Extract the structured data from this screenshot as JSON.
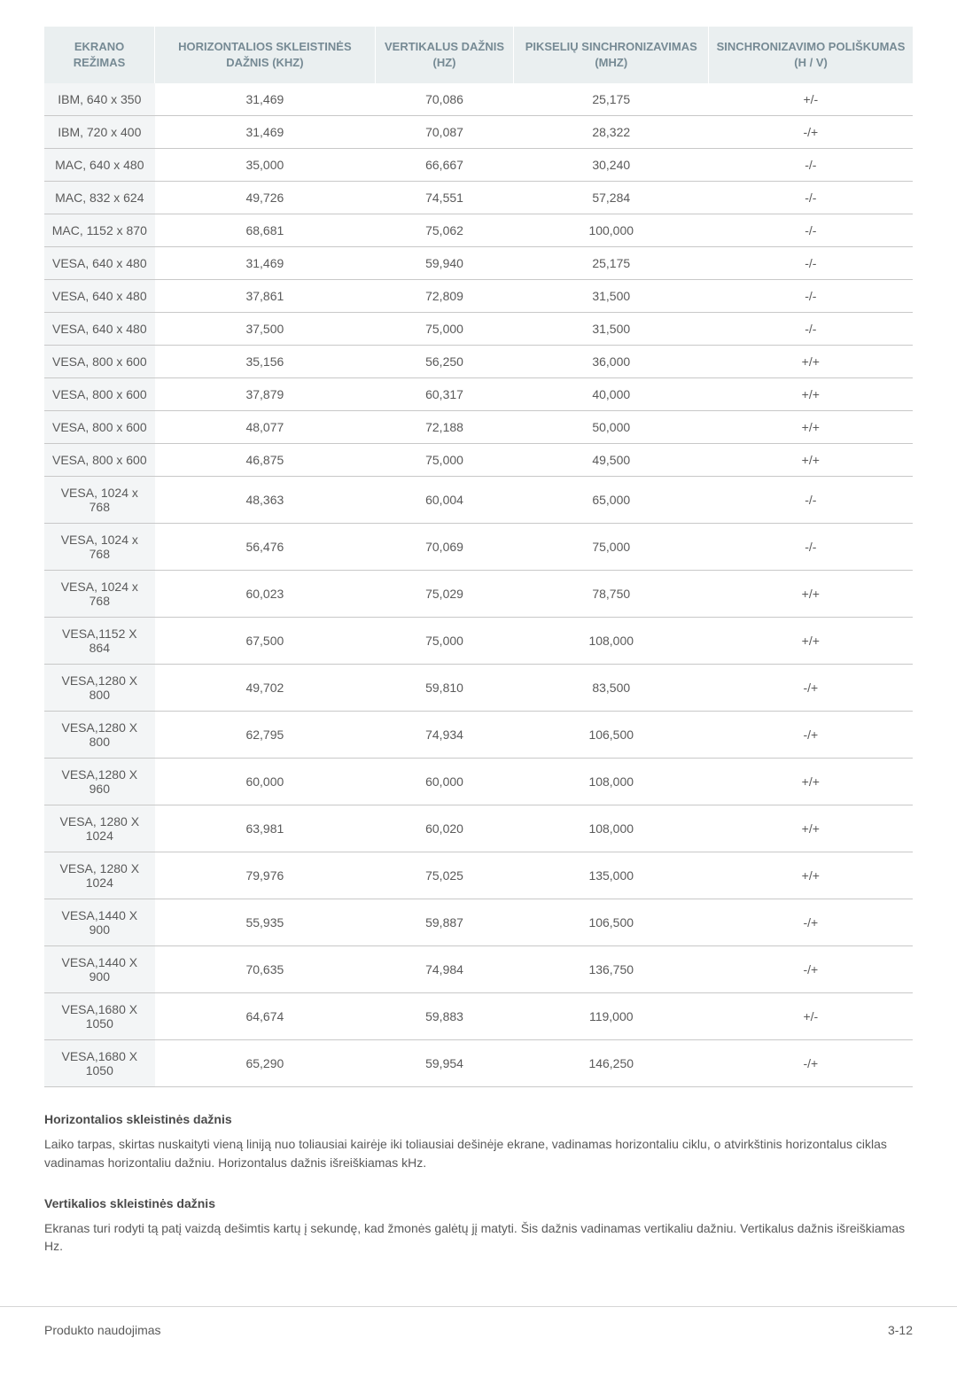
{
  "table": {
    "columns": [
      "EKRANO REŽIMAS",
      "HORIZONTALIOS SKLEISTINĖS DAŽNIS (KHZ)",
      "VERTIKALUS DAŽNIS (HZ)",
      "PIKSELIŲ SINCHRONIZAVIMAS (MHZ)",
      "SINCHRONIZAVIMO POLIŠKUMAS (H / V)"
    ],
    "header_bg": "#eaeff0",
    "header_color": "#768a94",
    "first_col_bg": "#f3f5f6",
    "border_color": "#c8c8c8",
    "rows": [
      [
        "IBM, 640 x 350",
        "31,469",
        "70,086",
        "25,175",
        "+/-"
      ],
      [
        "IBM, 720 x 400",
        "31,469",
        "70,087",
        "28,322",
        "-/+"
      ],
      [
        "MAC, 640 x 480",
        "35,000",
        "66,667",
        "30,240",
        "-/-"
      ],
      [
        "MAC, 832 x 624",
        "49,726",
        "74,551",
        "57,284",
        "-/-"
      ],
      [
        "MAC, 1152 x 870",
        "68,681",
        "75,062",
        "100,000",
        "-/-"
      ],
      [
        "VESA, 640 x 480",
        "31,469",
        "59,940",
        "25,175",
        "-/-"
      ],
      [
        "VESA, 640 x 480",
        "37,861",
        "72,809",
        "31,500",
        "-/-"
      ],
      [
        "VESA, 640 x 480",
        "37,500",
        "75,000",
        "31,500",
        "-/-"
      ],
      [
        "VESA, 800 x 600",
        "35,156",
        "56,250",
        "36,000",
        "+/+"
      ],
      [
        "VESA, 800 x 600",
        "37,879",
        "60,317",
        "40,000",
        "+/+"
      ],
      [
        "VESA, 800 x 600",
        "48,077",
        "72,188",
        "50,000",
        "+/+"
      ],
      [
        "VESA, 800 x 600",
        "46,875",
        "75,000",
        "49,500",
        "+/+"
      ],
      [
        "VESA, 1024 x 768",
        "48,363",
        "60,004",
        "65,000",
        "-/-"
      ],
      [
        "VESA, 1024 x 768",
        "56,476",
        "70,069",
        "75,000",
        "-/-"
      ],
      [
        "VESA, 1024 x 768",
        "60,023",
        "75,029",
        "78,750",
        "+/+"
      ],
      [
        "VESA,1152 X 864",
        "67,500",
        "75,000",
        "108,000",
        "+/+"
      ],
      [
        "VESA,1280 X 800",
        "49,702",
        "59,810",
        "83,500",
        "-/+"
      ],
      [
        "VESA,1280 X 800",
        "62,795",
        "74,934",
        "106,500",
        "-/+"
      ],
      [
        "VESA,1280 X 960",
        "60,000",
        "60,000",
        "108,000",
        "+/+"
      ],
      [
        "VESA, 1280 X 1024",
        "63,981",
        "60,020",
        "108,000",
        "+/+"
      ],
      [
        "VESA, 1280 X 1024",
        "79,976",
        "75,025",
        "135,000",
        "+/+"
      ],
      [
        "VESA,1440 X 900",
        "55,935",
        "59,887",
        "106,500",
        "-/+"
      ],
      [
        "VESA,1440 X 900",
        "70,635",
        "74,984",
        "136,750",
        "-/+"
      ],
      [
        "VESA,1680 X 1050",
        "64,674",
        "59,883",
        "119,000",
        "+/-"
      ],
      [
        "VESA,1680 X 1050",
        "65,290",
        "59,954",
        "146,250",
        "-/+"
      ]
    ]
  },
  "sections": {
    "h1_title": "Horizontalios skleistinės dažnis",
    "h1_body": "Laiko tarpas, skirtas nuskaityti vieną liniją nuo toliausiai kairėje iki toliausiai dešinėje ekrane, vadinamas horizontaliu ciklu, o atvirkštinis horizontalus ciklas vadinamas horizontaliu dažniu. Horizontalus dažnis išreiškiamas kHz.",
    "h2_title": "Vertikalios skleistinės dažnis",
    "h2_body": "Ekranas turi rodyti tą patį vaizdą dešimtis kartų į sekundę, kad žmonės galėtų jį matyti. Šis dažnis vadinamas vertikaliu dažniu. Vertikalus dažnis išreiškiamas Hz."
  },
  "footer": {
    "left": "Produkto naudojimas",
    "right": "3-12"
  }
}
